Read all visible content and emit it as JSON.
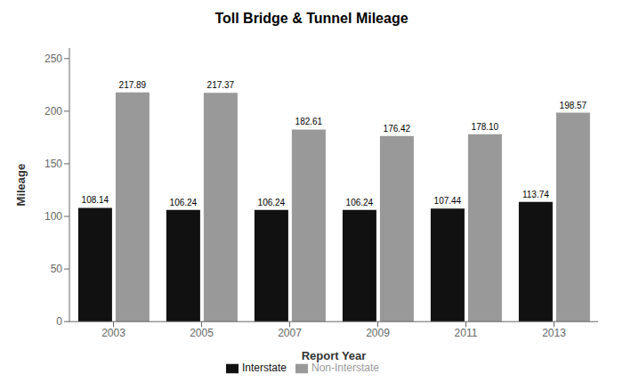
{
  "chart_data": {
    "type": "bar",
    "title": "Toll Bridge & Tunnel Mileage",
    "xlabel": "Report Year",
    "ylabel": "Mileage",
    "categories": [
      "2003",
      "2005",
      "2007",
      "2009",
      "2011",
      "2013"
    ],
    "series": [
      {
        "name": "Interstate",
        "color": "#111111",
        "values": [
          108.14,
          106.24,
          106.24,
          106.24,
          107.44,
          113.74
        ],
        "value_labels": [
          "108.14",
          "106.24",
          "106.24",
          "106.24",
          "107.44",
          "113.74"
        ]
      },
      {
        "name": "Non-Interstate",
        "color": "#999999",
        "values": [
          217.89,
          217.37,
          182.61,
          176.42,
          178.1,
          198.57
        ],
        "value_labels": [
          "217.89",
          "217.37",
          "182.61",
          "176.42",
          "178.10",
          "198.57"
        ]
      }
    ],
    "ylim": [
      0,
      260
    ],
    "yticks": [
      0,
      50,
      100,
      150,
      200,
      250
    ],
    "data_labels": true,
    "legend": "bottom",
    "grid": false
  }
}
